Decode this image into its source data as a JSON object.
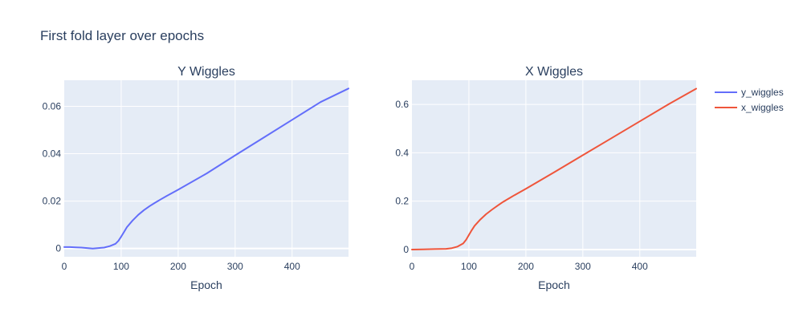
{
  "chart_data": {
    "title": "First fold layer over epochs",
    "plot_bgcolor": "#e5ecf6",
    "legend_position": "right",
    "subplots": [
      {
        "type": "line",
        "title": "Y Wiggles",
        "xlabel": "Epoch",
        "ylabel": "",
        "xlim": [
          0,
          499
        ],
        "ylim": [
          -0.0035,
          0.071
        ],
        "xticks": [
          0,
          100,
          200,
          300,
          400
        ],
        "yticks": [
          0,
          0.02,
          0.04,
          0.06
        ],
        "ytick_labels": [
          "0",
          "0.02",
          "0.04",
          "0.06"
        ],
        "series": [
          {
            "name": "y_wiggles",
            "color": "#636efa",
            "x": [
              0,
              10,
              20,
              30,
              40,
              50,
              60,
              70,
              80,
              90,
              95,
              100,
              105,
              110,
              120,
              130,
              140,
              150,
              160,
              170,
              180,
              190,
              200,
              250,
              300,
              350,
              400,
              450,
              499
            ],
            "y": [
              0.0006,
              0.0006,
              0.0005,
              0.0004,
              0.0002,
              0.0,
              0.0002,
              0.0004,
              0.001,
              0.002,
              0.0032,
              0.005,
              0.007,
              0.009,
              0.0118,
              0.0142,
              0.0162,
              0.0179,
              0.0194,
              0.0208,
              0.0222,
              0.0235,
              0.0248,
              0.0317,
              0.0393,
              0.0468,
              0.0543,
              0.0618,
              0.0675
            ]
          }
        ]
      },
      {
        "type": "line",
        "title": "X Wiggles",
        "xlabel": "Epoch",
        "ylabel": "",
        "xlim": [
          0,
          499
        ],
        "ylim": [
          -0.03,
          0.7
        ],
        "xticks": [
          0,
          100,
          200,
          300,
          400
        ],
        "yticks": [
          0,
          0.2,
          0.4,
          0.6
        ],
        "ytick_labels": [
          "0",
          "0.2",
          "0.4",
          "0.6"
        ],
        "series": [
          {
            "name": "x_wiggles",
            "color": "#ef553b",
            "x": [
              0,
              20,
              40,
              60,
              70,
              80,
              90,
              95,
              100,
              105,
              110,
              120,
              130,
              140,
              150,
              160,
              170,
              180,
              200,
              250,
              300,
              350,
              400,
              450,
              499
            ],
            "y": [
              0.0,
              0.001,
              0.002,
              0.003,
              0.006,
              0.012,
              0.025,
              0.04,
              0.06,
              0.08,
              0.098,
              0.124,
              0.146,
              0.164,
              0.181,
              0.197,
              0.211,
              0.225,
              0.251,
              0.32,
              0.39,
              0.46,
              0.53,
              0.6,
              0.665
            ]
          }
        ]
      }
    ]
  }
}
